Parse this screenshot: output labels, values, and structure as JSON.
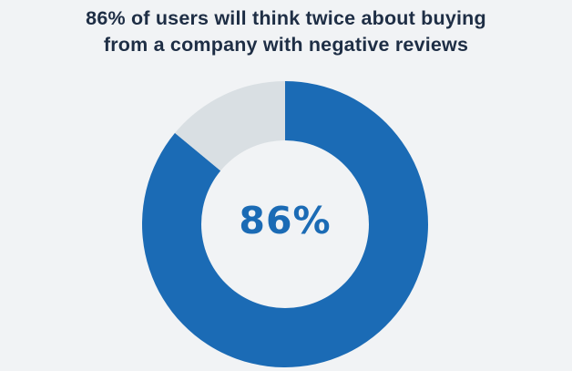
{
  "title_lines": [
    "86% of users will think twice about buying",
    "from a company with negative reviews"
  ],
  "center_label": "86%",
  "colors": {
    "background": "#f1f3f5",
    "title": "#1e2e45",
    "primary": "#1b6bb5",
    "remainder": "#d9dfe3"
  },
  "chart_data": {
    "type": "pie",
    "variant": "donut",
    "title": "86% of users will think twice about buying from a company with negative reviews",
    "slices": [
      {
        "label": "",
        "value": 86,
        "color": "#1b6bb5"
      },
      {
        "label": "",
        "value": 14,
        "color": "#d9dfe3"
      }
    ],
    "center_label": "86%",
    "start": "top",
    "direction": "clockwise",
    "legend": "none"
  }
}
